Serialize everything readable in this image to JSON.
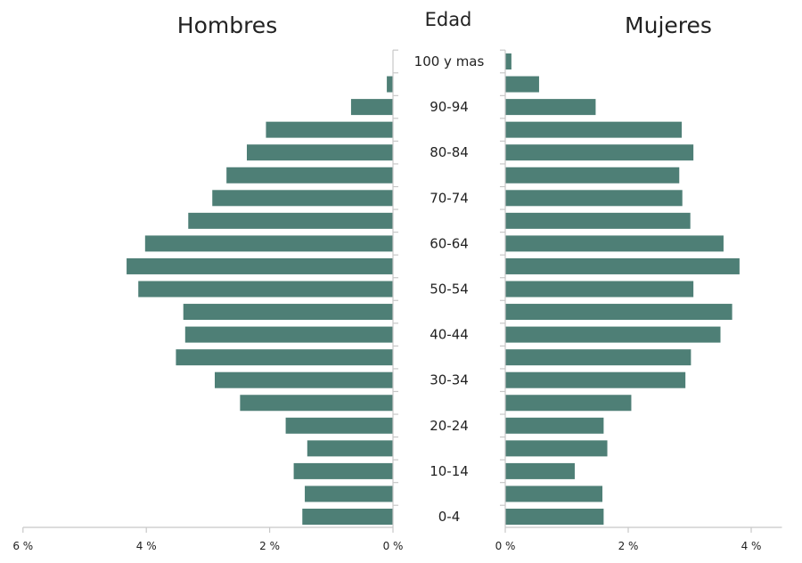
{
  "colors": {
    "bar": "#4e7f76",
    "axis": "#c8c8c8",
    "text": "#222222"
  },
  "chart_data": {
    "type": "bar",
    "orientation": "horizontal",
    "title_left": "Hombres",
    "title_center": "Edad",
    "title_right": "Mujeres",
    "categories": [
      "0-4",
      "5-9",
      "10-14",
      "15-19",
      "20-24",
      "25-29",
      "30-34",
      "35-39",
      "40-44",
      "45-49",
      "50-54",
      "55-59",
      "60-64",
      "65-69",
      "70-74",
      "75-79",
      "80-84",
      "85-89",
      "90-94",
      "95-99",
      "100 y mas"
    ],
    "category_labels_shown": [
      "0-4",
      "",
      "10-14",
      "",
      "20-24",
      "",
      "30-34",
      "",
      "40-44",
      "",
      "50-54",
      "",
      "60-64",
      "",
      "70-74",
      "",
      "80-84",
      "",
      "90-94",
      "",
      "100 y mas"
    ],
    "series": [
      {
        "name": "Hombres",
        "values": [
          1.47,
          1.43,
          1.61,
          1.39,
          1.74,
          2.48,
          2.89,
          3.52,
          3.37,
          3.4,
          4.13,
          4.32,
          4.02,
          3.32,
          2.93,
          2.7,
          2.37,
          2.06,
          0.68,
          0.1,
          0.0
        ]
      },
      {
        "name": "Mujeres",
        "values": [
          1.6,
          1.58,
          1.13,
          1.66,
          1.6,
          2.05,
          2.93,
          3.02,
          3.5,
          3.69,
          3.06,
          3.81,
          3.55,
          3.01,
          2.88,
          2.83,
          3.06,
          2.87,
          1.47,
          0.55,
          0.1
        ]
      }
    ],
    "xlim_left": [
      0,
      6
    ],
    "xlim_right": [
      0,
      4.5
    ],
    "ticks_left": [
      6,
      4,
      2,
      0
    ],
    "ticks_right": [
      0,
      2,
      4
    ],
    "tick_labels_left": [
      "6 %",
      "4 %",
      "2 %",
      "0 %"
    ],
    "tick_labels_right": [
      "0 %",
      "2 %",
      "4 %"
    ],
    "grid": false,
    "legend": "none"
  }
}
